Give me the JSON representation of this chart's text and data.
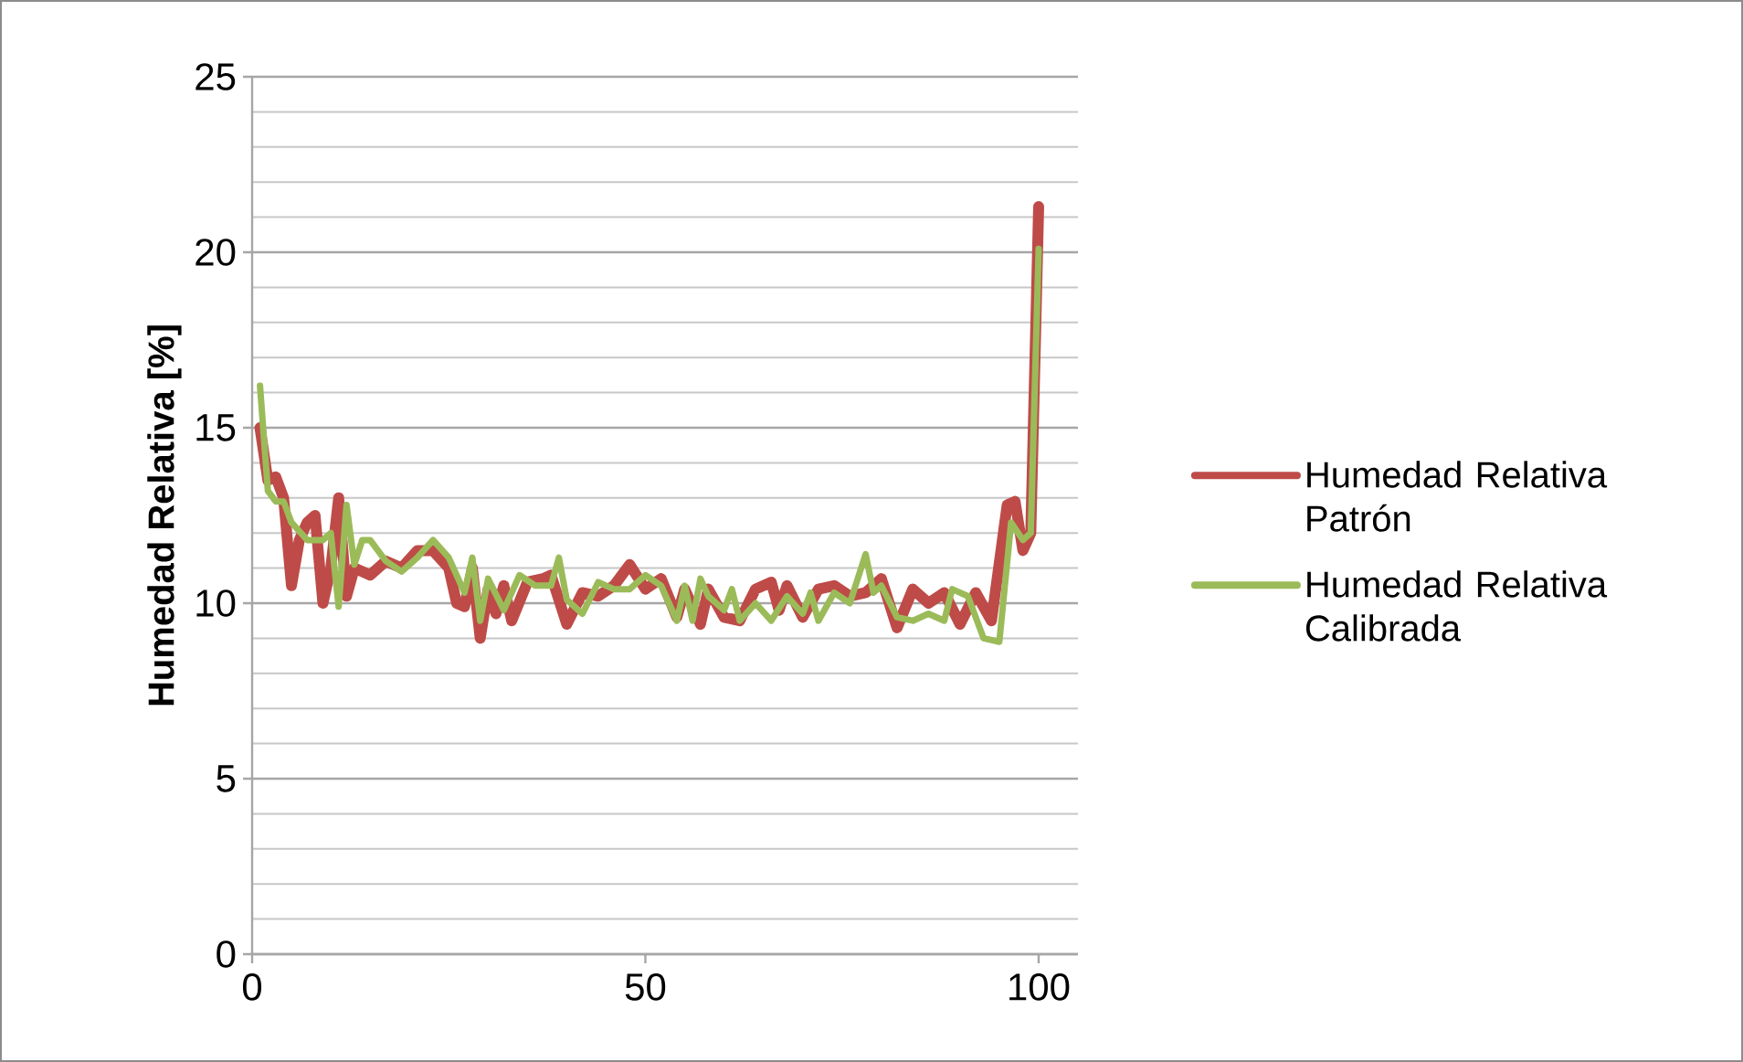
{
  "chart_data": {
    "type": "line",
    "ylabel": "Humedad Relativa [%]",
    "xlim": [
      0,
      105
    ],
    "xticks": [
      0,
      50,
      100
    ],
    "ylim": [
      0,
      25
    ],
    "yticks": [
      0,
      5,
      10,
      15,
      20,
      25
    ],
    "grid": "y",
    "legend": "right",
    "marker": "none",
    "line_style": "solid",
    "series": [
      {
        "name": "Humedad Relativa Patrón",
        "color": "#be4b48",
        "x": [
          1,
          2,
          3,
          4,
          5,
          6,
          7,
          8,
          9,
          10,
          11,
          12,
          13,
          15,
          17,
          19,
          21,
          23,
          25,
          26,
          27,
          28,
          29,
          30,
          31,
          32,
          33,
          35,
          37,
          38,
          40,
          42,
          44,
          46,
          48,
          50,
          52,
          54,
          55,
          57,
          58,
          60,
          62,
          64,
          66,
          67,
          68,
          70,
          72,
          74,
          76,
          78,
          80,
          82,
          84,
          86,
          88,
          90,
          92,
          94,
          96,
          97,
          98,
          99,
          100
        ],
        "values": [
          15.0,
          13.5,
          13.6,
          13.0,
          10.5,
          11.8,
          12.3,
          12.5,
          10.0,
          11.0,
          13.0,
          10.2,
          11.0,
          10.8,
          11.2,
          11.0,
          11.5,
          11.5,
          11.0,
          10.0,
          9.9,
          11.0,
          9.0,
          10.4,
          9.7,
          10.5,
          9.5,
          10.6,
          10.7,
          10.8,
          9.4,
          10.3,
          10.2,
          10.5,
          11.1,
          10.4,
          10.7,
          9.6,
          10.4,
          9.4,
          10.4,
          9.6,
          9.5,
          10.4,
          10.6,
          9.8,
          10.5,
          9.6,
          10.4,
          10.5,
          10.2,
          10.3,
          10.7,
          9.3,
          10.4,
          10.0,
          10.3,
          9.4,
          10.3,
          9.5,
          12.8,
          12.9,
          11.5,
          12.0,
          21.3
        ]
      },
      {
        "name": "Humedad Relativa Calibrada",
        "color": "#9bbb59",
        "x": [
          1,
          2,
          3,
          4,
          5,
          7,
          9,
          10,
          11,
          12,
          13,
          14,
          15,
          17,
          19,
          21,
          23,
          25,
          27,
          28,
          29,
          30,
          32,
          34,
          36,
          38,
          39,
          40,
          42,
          44,
          46,
          48,
          50,
          52,
          54,
          55,
          56,
          57,
          58,
          60,
          61,
          62,
          64,
          66,
          68,
          70,
          71,
          72,
          74,
          76,
          78,
          79,
          80,
          82,
          84,
          86,
          88,
          89,
          91,
          93,
          95,
          96.5,
          98,
          99,
          100
        ],
        "values": [
          16.2,
          13.2,
          12.9,
          12.9,
          12.3,
          11.8,
          11.8,
          12.0,
          9.9,
          12.8,
          11.1,
          11.8,
          11.8,
          11.2,
          10.9,
          11.3,
          11.8,
          11.3,
          10.3,
          11.3,
          9.5,
          10.7,
          9.8,
          10.8,
          10.5,
          10.5,
          11.3,
          10.1,
          9.7,
          10.6,
          10.4,
          10.4,
          10.8,
          10.5,
          9.5,
          10.5,
          9.5,
          10.7,
          10.2,
          9.8,
          10.4,
          9.5,
          10.0,
          9.5,
          10.2,
          9.7,
          10.3,
          9.5,
          10.3,
          10.0,
          11.4,
          10.3,
          10.5,
          9.6,
          9.5,
          9.7,
          9.5,
          10.4,
          10.2,
          9.0,
          8.9,
          12.3,
          11.8,
          12.0,
          20.1
        ]
      }
    ]
  }
}
